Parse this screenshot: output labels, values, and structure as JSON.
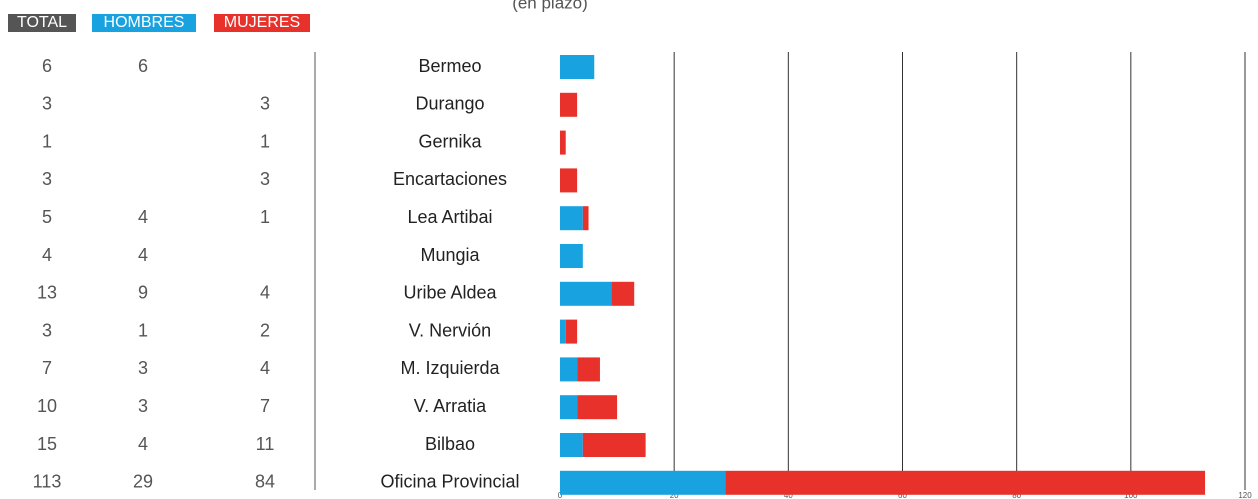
{
  "chart_data": {
    "type": "bar",
    "orientation": "horizontal",
    "stacked": true,
    "subtitle": "(en plazo)",
    "total_label": "TOTAL",
    "categories": [
      "Bermeo",
      "Durango",
      "Gernika",
      "Encartaciones",
      "Lea Artibai",
      "Mungia",
      "Uribe Aldea",
      "V. Nervión",
      "M. Izquierda",
      "V. Arratia",
      "Bilbao",
      "Oficina Provincial"
    ],
    "totals": [
      6,
      3,
      1,
      3,
      5,
      4,
      13,
      3,
      7,
      10,
      15,
      113
    ],
    "series": [
      {
        "name": "HOMBRES",
        "color": "#19a2e0",
        "values": [
          6,
          null,
          null,
          null,
          4,
          4,
          9,
          1,
          3,
          3,
          4,
          29
        ]
      },
      {
        "name": "MUJERES",
        "color": "#e8312a",
        "values": [
          null,
          3,
          1,
          3,
          1,
          null,
          4,
          2,
          4,
          7,
          11,
          84
        ]
      }
    ],
    "total_color": "#555555",
    "xlim": [
      0,
      120
    ],
    "xticks": [
      0,
      20,
      40,
      60,
      80,
      100,
      120
    ],
    "grid": true
  }
}
